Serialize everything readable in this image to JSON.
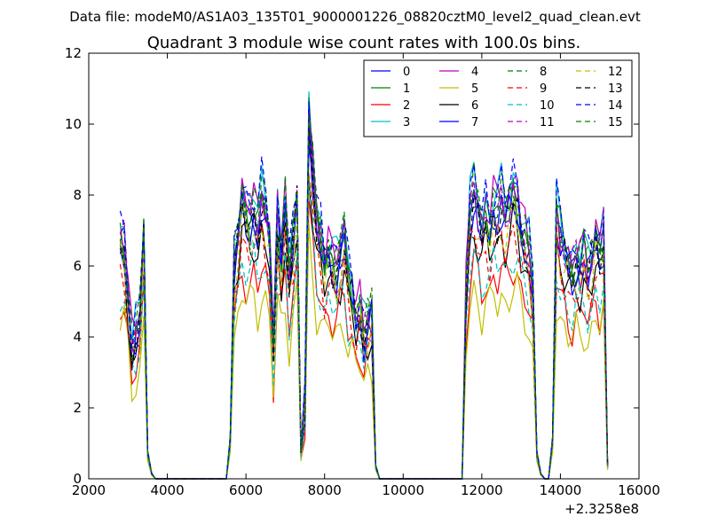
{
  "figure": {
    "suptitle": "Data file: modeM0/AS1A03_135T01_9000001226_08820cztM0_level2_quad_clean.evt"
  },
  "chart_data": {
    "type": "line",
    "title": "Quadrant 3 module wise count rates with 100.0s bins.",
    "xlabel": "",
    "ylabel": "",
    "x_offset_label": "+2.3258e8",
    "xlim": [
      2000,
      16000
    ],
    "ylim": [
      0,
      12
    ],
    "xticks": [
      2000,
      4000,
      6000,
      8000,
      10000,
      12000,
      14000,
      16000
    ],
    "yticks": [
      0,
      2,
      4,
      6,
      8,
      10,
      12
    ],
    "grid": false,
    "legend_location": "upper right",
    "legend_columns": 4,
    "profile": {
      "x": [
        2800,
        2900,
        3000,
        3100,
        3200,
        3300,
        3400,
        3500,
        3600,
        3700,
        5500,
        5600,
        5700,
        5800,
        5900,
        6000,
        6100,
        6200,
        6300,
        6400,
        6500,
        6600,
        6700,
        6800,
        6900,
        7000,
        7100,
        7200,
        7300,
        7400,
        7500,
        7600,
        7700,
        7800,
        7900,
        8000,
        8100,
        8200,
        8300,
        8400,
        8500,
        8600,
        8700,
        8800,
        8900,
        9000,
        9100,
        9200,
        9300,
        9400,
        11500,
        11600,
        11700,
        11800,
        11900,
        12000,
        12100,
        12200,
        12300,
        12400,
        12500,
        12600,
        12700,
        12800,
        12900,
        13000,
        13100,
        13200,
        13300,
        13400,
        13500,
        13600,
        13700,
        13800,
        13900,
        14000,
        14100,
        14200,
        14300,
        14400,
        14500,
        14600,
        14700,
        14800,
        14900,
        15000,
        15100,
        15200
      ],
      "shape": [
        0.9,
        0.88,
        0.7,
        0.5,
        0.55,
        0.6,
        0.92,
        0.1,
        0.02,
        0,
        0,
        0.15,
        0.8,
        0.9,
        1.05,
        1.0,
        0.98,
        1.02,
        0.95,
        1.05,
        1.0,
        0.9,
        0.5,
        0.98,
        0.85,
        1.02,
        0.75,
        0.9,
        1.05,
        0.1,
        0.3,
        1.35,
        1.15,
        0.95,
        0.9,
        0.8,
        0.85,
        0.82,
        0.8,
        0.85,
        0.9,
        0.75,
        0.7,
        0.6,
        0.65,
        0.55,
        0.6,
        0.62,
        0.05,
        0,
        0,
        0.7,
        1.0,
        1.08,
        1.0,
        0.92,
        1.0,
        0.95,
        1.02,
        1.0,
        1.05,
        0.98,
        1.02,
        1.08,
        1.05,
        0.95,
        0.9,
        0.85,
        0.7,
        0.1,
        0.02,
        0,
        0,
        0.15,
        1.0,
        0.9,
        0.85,
        0.8,
        0.78,
        0.82,
        0.8,
        0.85,
        0.78,
        0.82,
        0.9,
        0.85,
        0.92,
        0.05
      ]
    },
    "series": [
      {
        "name": "0",
        "color": "#0000ff",
        "dash": "solid",
        "level": 7.4
      },
      {
        "name": "1",
        "color": "#008000",
        "dash": "solid",
        "level": 7.5
      },
      {
        "name": "2",
        "color": "#ff0000",
        "dash": "solid",
        "level": 5.6
      },
      {
        "name": "3",
        "color": "#00bfbf",
        "dash": "solid",
        "level": 7.9
      },
      {
        "name": "4",
        "color": "#bf00bf",
        "dash": "solid",
        "level": 7.8
      },
      {
        "name": "5",
        "color": "#bfbf00",
        "dash": "solid",
        "level": 5.0
      },
      {
        "name": "6",
        "color": "#000000",
        "dash": "solid",
        "level": 6.6
      },
      {
        "name": "7",
        "color": "#0000ff",
        "dash": "solid",
        "level": 7.2
      },
      {
        "name": "8",
        "color": "#008000",
        "dash": "dashed",
        "level": 7.7
      },
      {
        "name": "9",
        "color": "#ff0000",
        "dash": "dashed",
        "level": 6.5
      },
      {
        "name": "10",
        "color": "#00bfbf",
        "dash": "dashed",
        "level": 5.9
      },
      {
        "name": "11",
        "color": "#bf00bf",
        "dash": "dashed",
        "level": 7.6
      },
      {
        "name": "12",
        "color": "#bfbf00",
        "dash": "dashed",
        "level": 6.9
      },
      {
        "name": "13",
        "color": "#000000",
        "dash": "dashed",
        "level": 7.3
      },
      {
        "name": "14",
        "color": "#0000ff",
        "dash": "dashed",
        "level": 8.0
      },
      {
        "name": "15",
        "color": "#008000",
        "dash": "dashed",
        "level": 7.7
      }
    ]
  }
}
